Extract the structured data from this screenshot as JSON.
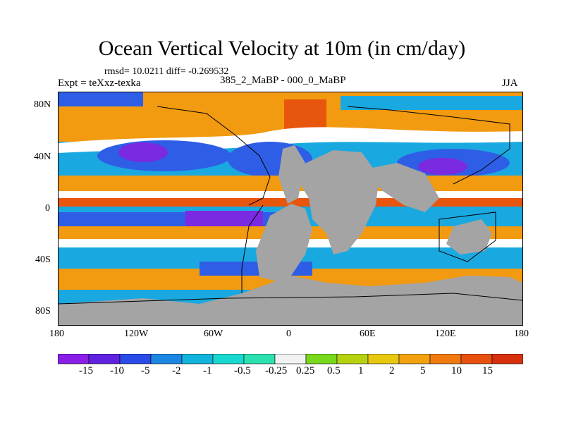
{
  "title": "Ocean Vertical Velocity at 10m (in cm/day)",
  "stats_line": "rmsd= 10.0211 diff= -0.269532",
  "experiment_label": "Expt = teXxz-texka",
  "difference_label": "385_2_MaBP - 000_0_MaBP",
  "season_label": "JJA",
  "y_axis_ticks": [
    "80N",
    "40N",
    "0",
    "40S",
    "80S"
  ],
  "x_axis_ticks": [
    "180",
    "120W",
    "60W",
    "0",
    "60E",
    "120E",
    "180"
  ],
  "colorbar": {
    "labels": [
      "-15",
      "-10",
      "-5",
      "-2",
      "-1",
      "-0.5",
      "-0.25",
      "0.25",
      "0.5",
      "1",
      "2",
      "5",
      "10",
      "15"
    ],
    "colors": [
      "#8a1ee6",
      "#5e22e0",
      "#2a4be8",
      "#1b86e3",
      "#12b4dd",
      "#18d9d0",
      "#2be1b0",
      "#f2f2f2",
      "#78d81c",
      "#b6d20f",
      "#e8c80f",
      "#f2a20e",
      "#f07a0e",
      "#e8500e",
      "#d8300c"
    ]
  },
  "map_colors": {
    "land": "#a4a4a4",
    "strong_down": "#7a2ae0",
    "down": "#2f5ee6",
    "weak_down": "#19a9e0",
    "near_zero": "#ffffff",
    "weak_up": "#e8c40f",
    "up": "#f29a10",
    "strong_up": "#e8560e"
  }
}
